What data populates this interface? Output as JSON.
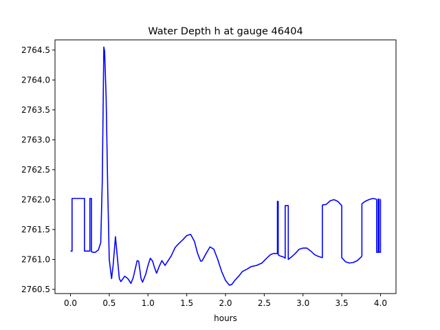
{
  "chart_data": {
    "type": "line",
    "title": "Water Depth h at gauge 46404",
    "xlabel": "hours",
    "ylabel": "",
    "xlim": [
      -0.2,
      4.2
    ],
    "ylim": [
      2760.43,
      2764.67
    ],
    "xticks": [
      0.0,
      0.5,
      1.0,
      1.5,
      2.0,
      2.5,
      3.0,
      3.5,
      4.0
    ],
    "xtick_labels": [
      "0.0",
      "0.5",
      "1.0",
      "1.5",
      "2.0",
      "2.5",
      "3.0",
      "3.5",
      "4.0"
    ],
    "yticks": [
      2760.5,
      2761.0,
      2761.5,
      2762.0,
      2762.5,
      2763.0,
      2763.5,
      2764.0,
      2764.5
    ],
    "ytick_labels": [
      "2760.5",
      "2761.0",
      "2761.5",
      "2762.0",
      "2762.5",
      "2763.0",
      "2763.5",
      "2764.0",
      "2764.5"
    ],
    "grid": false,
    "series": [
      {
        "color": "#0000ff",
        "points": [
          [
            0.0,
            2761.14
          ],
          [
            0.02,
            2761.14
          ],
          [
            0.02,
            2762.02
          ],
          [
            0.1,
            2762.02
          ],
          [
            0.18,
            2762.02
          ],
          [
            0.18,
            2761.14
          ],
          [
            0.25,
            2761.14
          ],
          [
            0.25,
            2762.02
          ],
          [
            0.27,
            2762.02
          ],
          [
            0.27,
            2761.13
          ],
          [
            0.29,
            2761.12
          ],
          [
            0.32,
            2761.12
          ],
          [
            0.36,
            2761.16
          ],
          [
            0.39,
            2761.28
          ],
          [
            0.41,
            2762.3
          ],
          [
            0.43,
            2764.55
          ],
          [
            0.44,
            2764.48
          ],
          [
            0.46,
            2763.7
          ],
          [
            0.48,
            2762.2
          ],
          [
            0.5,
            2761.0
          ],
          [
            0.53,
            2760.68
          ],
          [
            0.55,
            2760.9
          ],
          [
            0.58,
            2761.38
          ],
          [
            0.6,
            2761.1
          ],
          [
            0.63,
            2760.68
          ],
          [
            0.65,
            2760.63
          ],
          [
            0.7,
            2760.72
          ],
          [
            0.74,
            2760.68
          ],
          [
            0.78,
            2760.6
          ],
          [
            0.81,
            2760.7
          ],
          [
            0.86,
            2760.98
          ],
          [
            0.88,
            2760.97
          ],
          [
            0.91,
            2760.68
          ],
          [
            0.93,
            2760.62
          ],
          [
            0.97,
            2760.75
          ],
          [
            1.0,
            2760.9
          ],
          [
            1.03,
            2761.02
          ],
          [
            1.06,
            2760.97
          ],
          [
            1.08,
            2760.88
          ],
          [
            1.11,
            2760.77
          ],
          [
            1.15,
            2760.9
          ],
          [
            1.18,
            2760.98
          ],
          [
            1.22,
            2760.9
          ],
          [
            1.25,
            2760.96
          ],
          [
            1.3,
            2761.06
          ],
          [
            1.35,
            2761.2
          ],
          [
            1.4,
            2761.27
          ],
          [
            1.45,
            2761.33
          ],
          [
            1.5,
            2761.4
          ],
          [
            1.55,
            2761.42
          ],
          [
            1.6,
            2761.3
          ],
          [
            1.64,
            2761.1
          ],
          [
            1.68,
            2760.97
          ],
          [
            1.7,
            2760.98
          ],
          [
            1.75,
            2761.1
          ],
          [
            1.8,
            2761.21
          ],
          [
            1.85,
            2761.17
          ],
          [
            1.9,
            2761.0
          ],
          [
            1.95,
            2760.8
          ],
          [
            2.0,
            2760.65
          ],
          [
            2.05,
            2760.57
          ],
          [
            2.08,
            2760.58
          ],
          [
            2.12,
            2760.65
          ],
          [
            2.17,
            2760.72
          ],
          [
            2.22,
            2760.8
          ],
          [
            2.28,
            2760.84
          ],
          [
            2.33,
            2760.88
          ],
          [
            2.4,
            2760.9
          ],
          [
            2.47,
            2760.94
          ],
          [
            2.53,
            2761.02
          ],
          [
            2.58,
            2761.08
          ],
          [
            2.62,
            2761.1
          ],
          [
            2.67,
            2761.1
          ],
          [
            2.67,
            2761.97
          ],
          [
            2.68,
            2761.97
          ],
          [
            2.68,
            2761.08
          ],
          [
            2.7,
            2761.06
          ],
          [
            2.75,
            2761.04
          ],
          [
            2.77,
            2761.02
          ],
          [
            2.77,
            2761.9
          ],
          [
            2.81,
            2761.9
          ],
          [
            2.81,
            2761.0
          ],
          [
            2.85,
            2761.04
          ],
          [
            2.9,
            2761.1
          ],
          [
            2.95,
            2761.17
          ],
          [
            3.0,
            2761.19
          ],
          [
            3.05,
            2761.19
          ],
          [
            3.1,
            2761.14
          ],
          [
            3.15,
            2761.08
          ],
          [
            3.2,
            2761.05
          ],
          [
            3.25,
            2761.03
          ],
          [
            3.25,
            2761.91
          ],
          [
            3.3,
            2761.92
          ],
          [
            3.35,
            2761.98
          ],
          [
            3.4,
            2762.0
          ],
          [
            3.45,
            2761.97
          ],
          [
            3.5,
            2761.9
          ],
          [
            3.5,
            2761.03
          ],
          [
            3.55,
            2760.96
          ],
          [
            3.6,
            2760.94
          ],
          [
            3.65,
            2760.95
          ],
          [
            3.7,
            2760.98
          ],
          [
            3.75,
            2761.04
          ],
          [
            3.76,
            2761.06
          ],
          [
            3.76,
            2761.93
          ],
          [
            3.8,
            2761.97
          ],
          [
            3.85,
            2762.0
          ],
          [
            3.9,
            2762.02
          ],
          [
            3.94,
            2762.01
          ],
          [
            3.95,
            2762.0
          ],
          [
            3.95,
            2761.12
          ],
          [
            3.97,
            2761.12
          ],
          [
            3.97,
            2762.01
          ],
          [
            3.98,
            2762.01
          ],
          [
            3.98,
            2761.12
          ],
          [
            4.0,
            2761.12
          ],
          [
            4.0,
            2762.01
          ]
        ]
      }
    ]
  }
}
